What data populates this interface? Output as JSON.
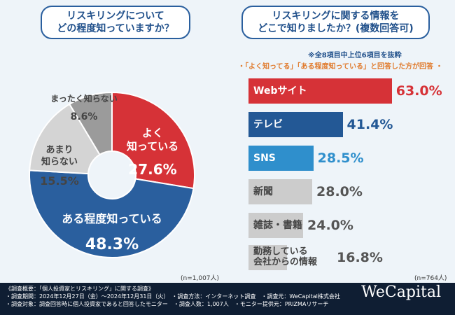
{
  "left": {
    "title_lines": [
      "リスキリングについて",
      "どの程度知っていますか？"
    ],
    "n": "(n=1,007人)"
  },
  "right": {
    "title_lines": [
      "リスキリングに関する情報を",
      "どこで知りましたか？(複数回答可)"
    ],
    "note1": "※全8項目中上位6項目を抜粋",
    "note2": "・「よく知ってる」「ある程度知っている」と回答した方が回答 ・",
    "n": "(n=764人)"
  },
  "chart_data": [
    {
      "type": "pie",
      "donut": true,
      "unit": "%",
      "slices": [
        {
          "label": "よく知っている",
          "value": 27.6,
          "color": "#d63237"
        },
        {
          "label": "ある程度知っている",
          "value": 48.3,
          "color": "#2a5f9e"
        },
        {
          "label": "あまり知らない",
          "value": 15.5,
          "color": "#d4d4d4"
        },
        {
          "label": "まったく知らない",
          "value": 8.6,
          "color": "#9b9b9b"
        }
      ]
    },
    {
      "type": "bar",
      "orientation": "horizontal",
      "unit": "%",
      "categories": [
        "Webサイト",
        "テレビ",
        "SNS",
        "新聞",
        "雑誌・書籍",
        "勤務している会社からの情報"
      ],
      "values": [
        63.0,
        41.4,
        28.5,
        28.0,
        24.0,
        16.8
      ],
      "colors": [
        "#d63237",
        "#235895",
        "#2f8fcc",
        "#cccccc",
        "#cccccc",
        "#cccccc"
      ],
      "value_colors": [
        "#d63237",
        "#235895",
        "#2f8fcc",
        "#555555",
        "#555555",
        "#555555"
      ]
    }
  ],
  "footer": {
    "lines": [
      "《調査概要：「個人投資家とリスキリング」に関する調査》",
      "・調査期間：2024年12月27日（金）〜2024年12月31日（火）　・調査方法：インターネット調査　・調査元：WeCapital株式会社",
      "・調査対象：調査回答時に個人投資家であると回答したモニター　・調査人数：1,007人　・モニター提供元：PRIZMAリサーチ"
    ],
    "logo": "WeCapital"
  }
}
